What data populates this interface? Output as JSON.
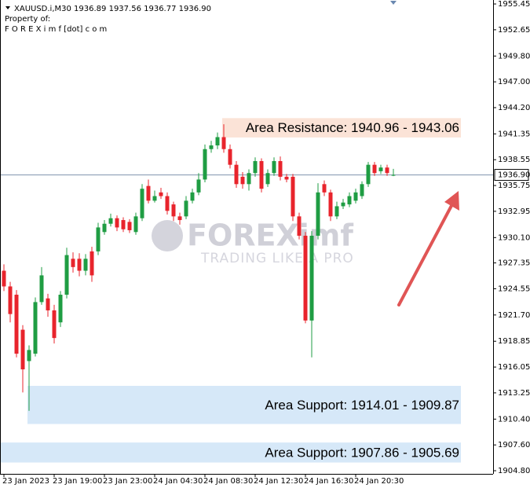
{
  "chart_data": {
    "type": "candlestick",
    "header": {
      "symbol_line": "XAUUSD.i,M30  1936.89 1937.56 1936.77 1936.90",
      "owner_label": "Property of:",
      "owner": "F O R E X i m f [dot] c o m"
    },
    "watermark": {
      "brand": "FOREXimf",
      "tagline": "TRADING LIKE A PRO"
    },
    "categories": [
      "23 Jan 2023",
      null,
      null,
      null,
      null,
      null,
      null,
      null,
      "23 Jan 19:00",
      null,
      null,
      null,
      null,
      null,
      null,
      null,
      "23 Jan 23:00",
      null,
      null,
      null,
      null,
      null,
      null,
      null,
      "24 Jan 04:30",
      null,
      null,
      null,
      null,
      null,
      null,
      null,
      "24 Jan 08:30",
      null,
      null,
      null,
      null,
      null,
      null,
      null,
      "24 Jan 12:30",
      null,
      null,
      null,
      null,
      null,
      null,
      null,
      "24 Jan 16:30",
      null,
      null,
      null,
      null,
      null,
      null,
      null,
      "24 Jan 20:30",
      null,
      null,
      null,
      null,
      null,
      null
    ],
    "open": [
      1926.5,
      1924.8,
      1923.9,
      1920.1,
      1916.7,
      1917.5,
      1923.1,
      1923.5,
      1922.2,
      1920.9,
      1923.9,
      1927.8,
      1927.8,
      1926.5,
      1928.6,
      1928.6,
      1930.7,
      1931.6,
      1932.2,
      1932.0,
      1931.8,
      1930.7,
      1932.2,
      1935.7,
      1934.1,
      1935.0,
      1934.6,
      1933.7,
      1932.4,
      1932.4,
      1934.1,
      1935.0,
      1936.4,
      1939.7,
      1940.1,
      1941.0,
      1939.7,
      1938.0,
      1936.7,
      1935.9,
      1937.1,
      1938.4,
      1935.9,
      1937.1,
      1938.4,
      1936.7,
      1936.7,
      1932.4,
      1930.3,
      1921.1,
      1930.3,
      1935.9,
      1935.0,
      1932.4,
      1933.5,
      1933.7,
      1934.1,
      1934.6,
      1935.9,
      1938.0,
      1937.3,
      1937.7,
      1936.89
    ],
    "high": [
      1927.2,
      1925.3,
      1924.4,
      1920.6,
      1918.4,
      1923.6,
      1926.9,
      1924.0,
      1922.8,
      1924.3,
      1929.0,
      1928.5,
      1928.4,
      1928.3,
      1929.1,
      1931.7,
      1932.0,
      1932.7,
      1932.5,
      1932.3,
      1932.1,
      1932.8,
      1935.9,
      1936.4,
      1935.2,
      1935.5,
      1935.0,
      1934.0,
      1932.8,
      1934.6,
      1935.4,
      1937.1,
      1940.2,
      1940.6,
      1941.5,
      1942.4,
      1940.2,
      1938.4,
      1937.2,
      1937.5,
      1938.8,
      1938.7,
      1937.5,
      1938.8,
      1938.9,
      1937.0,
      1937.0,
      1932.8,
      1930.7,
      1930.8,
      1936.0,
      1936.3,
      1935.3,
      1934.0,
      1934.3,
      1935.0,
      1935.4,
      1936.2,
      1938.3,
      1938.3,
      1938.0,
      1938.0,
      1937.56
    ],
    "low": [
      1924.3,
      1920.9,
      1917.1,
      1913.3,
      1911.3,
      1917.2,
      1922.8,
      1921.5,
      1918.6,
      1920.4,
      1923.5,
      1926.3,
      1925.9,
      1926.0,
      1925.3,
      1928.2,
      1930.4,
      1931.3,
      1930.8,
      1930.7,
      1930.6,
      1930.4,
      1931.9,
      1933.8,
      1933.9,
      1934.3,
      1932.6,
      1931.9,
      1931.5,
      1932.1,
      1933.8,
      1934.7,
      1936.1,
      1939.3,
      1939.7,
      1939.3,
      1937.6,
      1935.5,
      1935.4,
      1935.2,
      1936.7,
      1935.0,
      1935.6,
      1936.8,
      1936.3,
      1936.1,
      1931.9,
      1929.9,
      1920.8,
      1917.1,
      1929.9,
      1934.6,
      1931.9,
      1932.1,
      1933.2,
      1933.4,
      1933.8,
      1934.3,
      1935.6,
      1936.8,
      1937.0,
      1936.8,
      1936.77
    ],
    "close": [
      1924.8,
      1921.8,
      1917.5,
      1915.8,
      1917.9,
      1923.1,
      1926.0,
      1922.2,
      1919.2,
      1923.9,
      1928.2,
      1926.9,
      1926.5,
      1927.8,
      1926.0,
      1931.2,
      1931.6,
      1932.2,
      1931.2,
      1931.0,
      1930.9,
      1932.4,
      1935.4,
      1934.1,
      1934.6,
      1934.6,
      1933.0,
      1932.4,
      1932.0,
      1934.1,
      1935.0,
      1936.4,
      1939.7,
      1940.1,
      1941.0,
      1939.7,
      1938.0,
      1935.9,
      1935.9,
      1937.1,
      1938.4,
      1935.4,
      1937.1,
      1938.4,
      1936.7,
      1936.4,
      1932.4,
      1930.3,
      1921.1,
      1930.3,
      1935.0,
      1935.0,
      1932.4,
      1933.5,
      1933.9,
      1934.6,
      1935.0,
      1935.9,
      1938.0,
      1937.1,
      1937.7,
      1937.1,
      1936.9
    ],
    "up_color": "#1f9d43",
    "down_color": "#e8242c",
    "current_price": {
      "value": 1936.9,
      "label": "1936.90"
    },
    "ylim": [
      1904.46,
      1955.88
    ],
    "yticks": [
      1955.45,
      1952.65,
      {
        "value": 1949.8,
        "label": "1949.80"
      },
      {
        "value": 1947,
        "label": "1947.00"
      },
      {
        "value": 1944.2,
        "label": "1944.20"
      },
      1941.35,
      1938.55,
      1935.75,
      1932.95,
      {
        "value": 1930.1,
        "label": "1930.10"
      },
      1927.35,
      1924.55,
      {
        "value": 1921.7,
        "label": "1921.70"
      },
      1918.85,
      1916.05,
      1913.25,
      {
        "value": 1910.4,
        "label": "1910.40"
      },
      {
        "value": 1907.6,
        "label": "1907.60"
      },
      {
        "value": 1904.8,
        "label": "1904.80"
      }
    ],
    "zones": [
      {
        "label": "Area Resistance: 1940.96 - 1943.06",
        "low": 1940.96,
        "high": 1943.06,
        "color": "#fbe3d7"
      },
      {
        "label": "Area Support: 1914.01 - 1909.87",
        "low": 1909.87,
        "high": 1914.01,
        "color": "#d6e8f8"
      },
      {
        "label": "Area Support: 1907.86 - 1905.69",
        "low": 1905.69,
        "high": 1907.86,
        "color": "#d6e8f8"
      }
    ]
  }
}
